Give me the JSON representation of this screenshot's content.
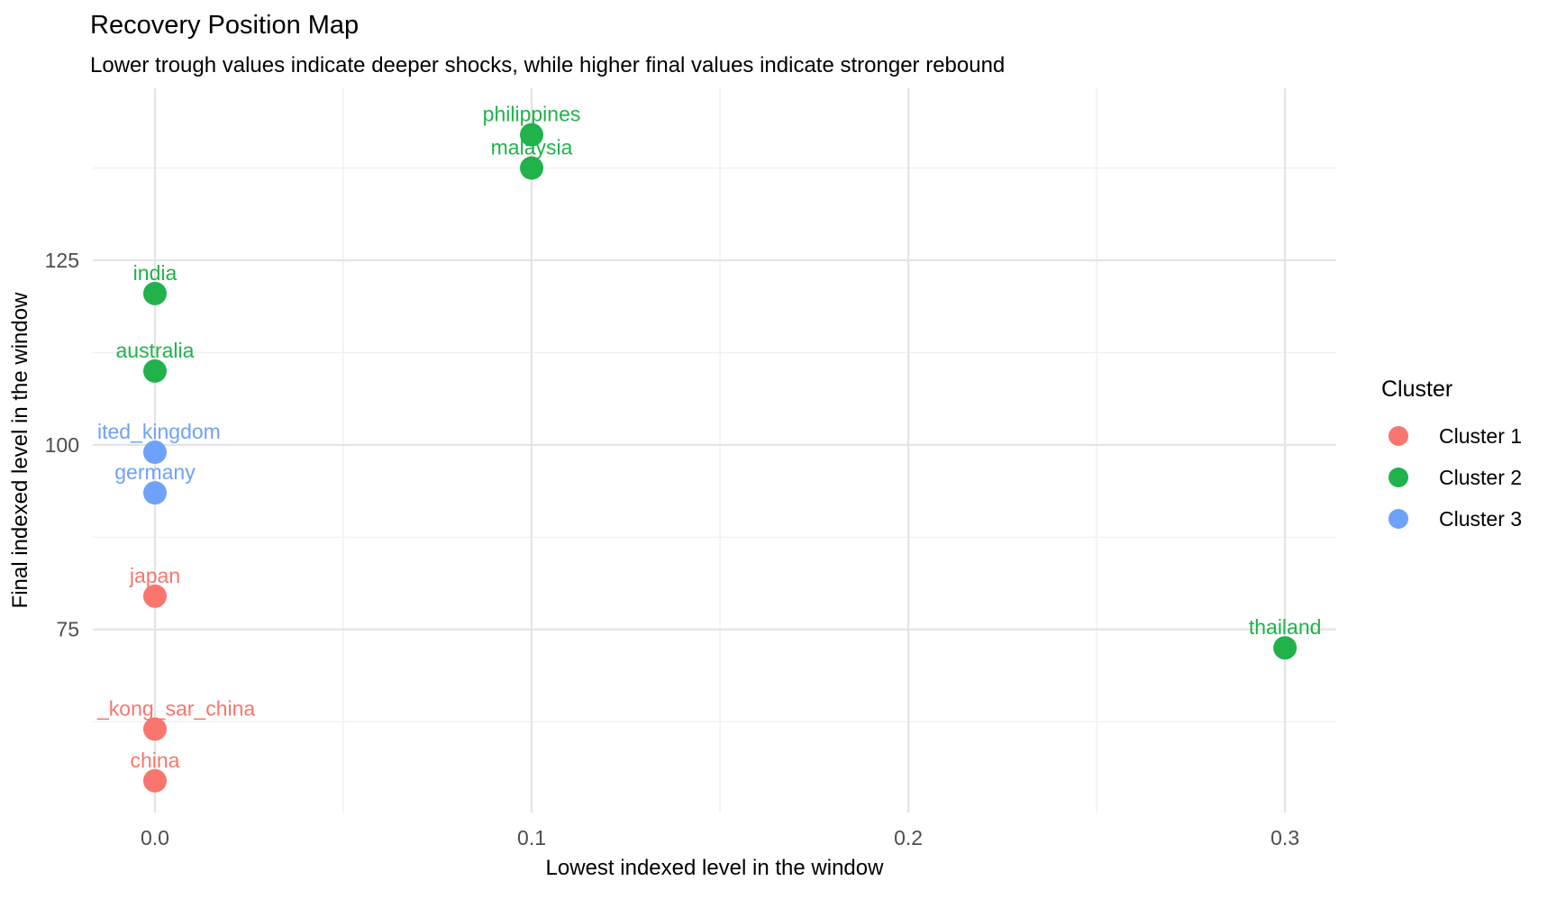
{
  "chart_data": {
    "type": "scatter",
    "title": "Recovery Position Map",
    "subtitle": "Lower trough values indicate deeper shocks, while higher final values indicate stronger rebound",
    "xlabel": "Lowest indexed level in the window",
    "ylabel": "Final indexed level in the window",
    "xlim": [
      -0.0165,
      0.3136
    ],
    "ylim": [
      50.2,
      148.3
    ],
    "x_ticks": {
      "values": [
        0.0,
        0.1,
        0.2,
        0.3
      ],
      "labels": [
        "0.0",
        "0.1",
        "0.2",
        "0.3"
      ]
    },
    "x_minor": [
      0.05,
      0.15,
      0.25
    ],
    "y_ticks": {
      "values": [
        75,
        100,
        125
      ],
      "labels": [
        "75",
        "100",
        "125"
      ]
    },
    "y_minor": [
      62.5,
      87.5,
      112.5,
      137.5
    ],
    "grid": true,
    "background_color": "#FFFFFF",
    "grid_major_color": "#E4E4E4",
    "grid_minor_color": "#F0F0F0",
    "tick_label_color": "#4D4D4D",
    "legend": {
      "title": "Cluster",
      "position": "right"
    },
    "clusters": [
      {
        "name": "Cluster 1",
        "color": "#F8766D"
      },
      {
        "name": "Cluster 2",
        "color": "#21B24C"
      },
      {
        "name": "Cluster 3",
        "color": "#6EA2F8"
      }
    ],
    "points": [
      {
        "label": "philippines",
        "x": 0.1,
        "y": 142.0,
        "cluster": "Cluster 2"
      },
      {
        "label": "malaysia",
        "x": 0.1,
        "y": 137.5,
        "cluster": "Cluster 2"
      },
      {
        "label": "india",
        "x": 0.0,
        "y": 120.5,
        "cluster": "Cluster 2"
      },
      {
        "label": "australia",
        "x": 0.0,
        "y": 110.0,
        "cluster": "Cluster 2"
      },
      {
        "label": "ited_kingdom",
        "x": 0.0,
        "y": 99.0,
        "cluster": "Cluster 3",
        "label_clipped": true
      },
      {
        "label": "germany",
        "x": 0.0,
        "y": 93.5,
        "cluster": "Cluster 3"
      },
      {
        "label": "japan",
        "x": 0.0,
        "y": 79.5,
        "cluster": "Cluster 1"
      },
      {
        "label": "thailand",
        "x": 0.3,
        "y": 72.5,
        "cluster": "Cluster 2"
      },
      {
        "label": "_kong_sar_china",
        "x": 0.0,
        "y": 61.5,
        "cluster": "Cluster 1",
        "label_clipped": true
      },
      {
        "label": "china",
        "x": 0.0,
        "y": 54.5,
        "cluster": "Cluster 1"
      }
    ]
  }
}
